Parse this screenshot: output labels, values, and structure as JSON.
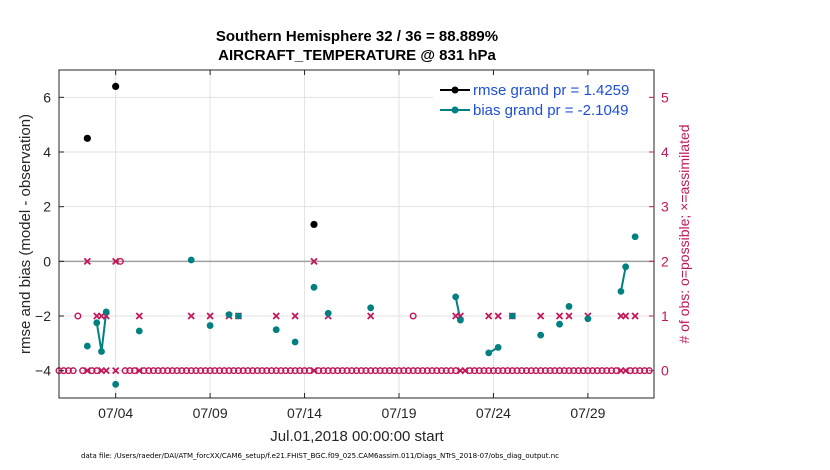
{
  "figure": {
    "title_line1": "Southern Hemisphere 32 / 36 = 88.889%",
    "title_line2": "AIRCRAFT_TEMPERATURE @ 831 hPa",
    "footer": "data file: /Users/raeder/DAI/ATM_forcXX/CAM6_setup/f.e21.FHIST_BGC.f09_025.CAM6assim.011/Diags_NTrS_2018-07/obs_diag_output.nc"
  },
  "chart_data": {
    "type": "line",
    "xlabel": "Jul.01,2018 00:00:00 start",
    "ylabel": "rmse and bias (model - observation)",
    "y2label": "# of obs: o=possible; ×=assimilated",
    "xlim": [
      1,
      32.5
    ],
    "ylim": [
      -5,
      7
    ],
    "y2lim": [
      -0.5,
      5.5
    ],
    "x_ticks": [
      4,
      9,
      14,
      19,
      24,
      29
    ],
    "x_tick_labels": [
      "07/04",
      "07/09",
      "07/14",
      "07/19",
      "07/24",
      "07/29"
    ],
    "y_ticks": [
      -4,
      -2,
      0,
      2,
      4,
      6
    ],
    "y2_ticks": [
      0,
      1,
      2,
      3,
      4,
      5
    ],
    "zero_line": 0,
    "grid": true,
    "legend_position": "top-right",
    "series": [
      {
        "name": "rmse grand pr = 1.4259",
        "color": "#000000",
        "marker": "circle",
        "points": [
          [
            2.5,
            4.5
          ],
          [
            4.0,
            6.4
          ],
          [
            14.5,
            1.35
          ]
        ]
      },
      {
        "name": "bias grand pr = -2.1049",
        "color": "#008080",
        "marker": "circle",
        "segments": [
          [
            [
              2.5,
              -3.1
            ]
          ],
          [
            [
              3.0,
              -2.25
            ],
            [
              3.25,
              -3.3
            ],
            [
              3.5,
              -1.85
            ]
          ],
          [
            [
              4.0,
              -4.5
            ]
          ],
          [
            [
              5.25,
              -2.55
            ]
          ],
          [
            [
              8.0,
              0.05
            ]
          ],
          [
            [
              9.0,
              -2.35
            ]
          ],
          [
            [
              10.0,
              -1.95
            ]
          ],
          [
            [
              10.5,
              -2.0
            ]
          ],
          [
            [
              12.5,
              -2.5
            ]
          ],
          [
            [
              13.5,
              -2.95
            ]
          ],
          [
            [
              14.5,
              -0.95
            ]
          ],
          [
            [
              15.25,
              -1.9
            ]
          ],
          [
            [
              17.5,
              -1.7
            ]
          ],
          [
            [
              22.0,
              -1.3
            ],
            [
              22.25,
              -2.15
            ]
          ],
          [
            [
              23.75,
              -3.35
            ],
            [
              24.25,
              -3.15
            ]
          ],
          [
            [
              25.0,
              -2.0
            ]
          ],
          [
            [
              26.5,
              -2.7
            ]
          ],
          [
            [
              27.5,
              -2.3
            ]
          ],
          [
            [
              28.0,
              -1.65
            ]
          ],
          [
            [
              29.0,
              -2.1
            ]
          ],
          [
            [
              30.75,
              -1.1
            ],
            [
              31.0,
              -0.2
            ]
          ],
          [
            [
              31.5,
              0.9
            ]
          ]
        ]
      }
    ],
    "possible_obs": {
      "color": "#c2185b",
      "points": [
        [
          2.0,
          1
        ],
        [
          4.25,
          2
        ],
        [
          19.75,
          1
        ],
        [
          1.0,
          0
        ],
        [
          1.25,
          0
        ],
        [
          1.5,
          0
        ],
        [
          1.75,
          0
        ],
        [
          2.25,
          0
        ],
        [
          2.75,
          0
        ],
        [
          3.0,
          0
        ],
        [
          4.5,
          0
        ],
        [
          4.75,
          0
        ],
        [
          5.0,
          0
        ],
        [
          5.5,
          0
        ],
        [
          5.75,
          0
        ],
        [
          6.0,
          0
        ],
        [
          6.25,
          0
        ],
        [
          6.5,
          0
        ],
        [
          6.75,
          0
        ],
        [
          7.0,
          0
        ],
        [
          7.25,
          0
        ],
        [
          7.5,
          0
        ],
        [
          7.75,
          0
        ],
        [
          8.0,
          0
        ],
        [
          8.25,
          0
        ],
        [
          8.5,
          0
        ],
        [
          8.75,
          0
        ],
        [
          9.0,
          0
        ],
        [
          9.25,
          0
        ],
        [
          9.5,
          0
        ],
        [
          9.75,
          0
        ],
        [
          10.0,
          0
        ],
        [
          10.25,
          0
        ],
        [
          10.5,
          0
        ],
        [
          10.75,
          0
        ],
        [
          11.0,
          0
        ],
        [
          11.25,
          0
        ],
        [
          11.5,
          0
        ],
        [
          11.75,
          0
        ],
        [
          12.0,
          0
        ],
        [
          12.25,
          0
        ],
        [
          12.5,
          0
        ],
        [
          12.75,
          0
        ],
        [
          13.0,
          0
        ],
        [
          13.25,
          0
        ],
        [
          13.5,
          0
        ],
        [
          13.75,
          0
        ],
        [
          14.0,
          0
        ],
        [
          14.25,
          0
        ],
        [
          14.75,
          0
        ],
        [
          15.0,
          0
        ],
        [
          15.25,
          0
        ],
        [
          15.5,
          0
        ],
        [
          15.75,
          0
        ],
        [
          16.0,
          0
        ],
        [
          16.25,
          0
        ],
        [
          16.5,
          0
        ],
        [
          16.75,
          0
        ],
        [
          17.0,
          0
        ],
        [
          17.25,
          0
        ],
        [
          17.5,
          0
        ],
        [
          17.75,
          0
        ],
        [
          18.0,
          0
        ],
        [
          18.25,
          0
        ],
        [
          18.5,
          0
        ],
        [
          18.75,
          0
        ],
        [
          19.0,
          0
        ],
        [
          19.25,
          0
        ],
        [
          19.5,
          0
        ],
        [
          19.75,
          0
        ],
        [
          20.0,
          0
        ],
        [
          20.25,
          0
        ],
        [
          20.5,
          0
        ],
        [
          20.75,
          0
        ],
        [
          21.0,
          0
        ],
        [
          21.25,
          0
        ],
        [
          21.5,
          0
        ],
        [
          21.75,
          0
        ],
        [
          22.0,
          0
        ],
        [
          22.75,
          0
        ],
        [
          23.0,
          0
        ],
        [
          23.25,
          0
        ],
        [
          23.5,
          0
        ],
        [
          23.75,
          0
        ],
        [
          24.0,
          0
        ],
        [
          24.25,
          0
        ],
        [
          24.5,
          0
        ],
        [
          24.75,
          0
        ],
        [
          25.0,
          0
        ],
        [
          25.25,
          0
        ],
        [
          25.5,
          0
        ],
        [
          25.75,
          0
        ],
        [
          26.0,
          0
        ],
        [
          26.25,
          0
        ],
        [
          26.5,
          0
        ],
        [
          26.75,
          0
        ],
        [
          27.0,
          0
        ],
        [
          27.25,
          0
        ],
        [
          27.5,
          0
        ],
        [
          27.75,
          0
        ],
        [
          28.0,
          0
        ],
        [
          28.25,
          0
        ],
        [
          28.5,
          0
        ],
        [
          28.75,
          0
        ],
        [
          29.0,
          0
        ],
        [
          29.25,
          0
        ],
        [
          29.5,
          0
        ],
        [
          29.75,
          0
        ],
        [
          30.0,
          0
        ],
        [
          30.25,
          0
        ],
        [
          30.5,
          0
        ],
        [
          31.25,
          0
        ],
        [
          31.5,
          0
        ],
        [
          31.75,
          0
        ],
        [
          32.0,
          0
        ],
        [
          32.25,
          0
        ]
      ]
    },
    "assimilated_obs": {
      "color": "#c2185b",
      "points": [
        [
          2.5,
          2
        ],
        [
          4.0,
          2
        ],
        [
          14.5,
          2
        ],
        [
          3.0,
          1
        ],
        [
          3.25,
          1
        ],
        [
          3.5,
          1
        ],
        [
          5.25,
          1
        ],
        [
          8.0,
          1
        ],
        [
          9.0,
          1
        ],
        [
          10.0,
          1
        ],
        [
          10.5,
          1
        ],
        [
          12.5,
          1
        ],
        [
          13.5,
          1
        ],
        [
          15.25,
          1
        ],
        [
          17.5,
          1
        ],
        [
          22.0,
          1
        ],
        [
          22.25,
          1
        ],
        [
          23.75,
          1
        ],
        [
          24.25,
          1
        ],
        [
          25.0,
          1
        ],
        [
          26.5,
          1
        ],
        [
          27.5,
          1
        ],
        [
          28.0,
          1
        ],
        [
          29.0,
          1
        ],
        [
          30.75,
          1
        ],
        [
          31.0,
          1
        ],
        [
          31.5,
          1
        ],
        [
          2.5,
          0
        ],
        [
          3.25,
          0
        ],
        [
          3.5,
          0
        ],
        [
          4.0,
          0
        ],
        [
          5.25,
          0
        ],
        [
          14.5,
          0
        ],
        [
          22.25,
          0
        ],
        [
          22.5,
          0
        ],
        [
          30.75,
          0
        ],
        [
          31.0,
          0
        ]
      ]
    }
  }
}
